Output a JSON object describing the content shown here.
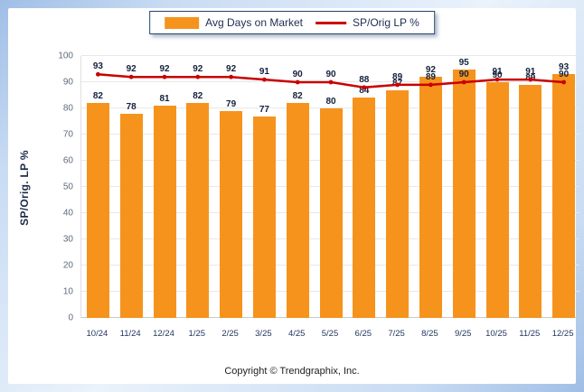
{
  "legend": {
    "bar_label": "Avg Days on Market",
    "line_label": "SP/Orig LP %"
  },
  "y_axis_title": "SP/Orig. LP %",
  "footer": "Copyright © Trendgraphix, Inc.",
  "colors": {
    "bar": "#F6931D",
    "line": "#C80000"
  },
  "chart_data": {
    "type": "bar",
    "subtype": "bar-and-line-combo",
    "categories": [
      "10/24",
      "11/24",
      "12/24",
      "1/25",
      "2/25",
      "3/25",
      "4/25",
      "5/25",
      "6/25",
      "7/25",
      "8/25",
      "9/25",
      "10/25",
      "11/25",
      "12/25"
    ],
    "series": [
      {
        "name": "Avg Days on Market",
        "type": "bar",
        "values": [
          82,
          78,
          81,
          82,
          79,
          77,
          82,
          80,
          84,
          87,
          92,
          95,
          90,
          89,
          93
        ]
      },
      {
        "name": "SP/Orig LP %",
        "type": "line",
        "values": [
          93,
          92,
          92,
          92,
          92,
          91,
          90,
          90,
          88,
          89,
          89,
          90,
          91,
          91,
          90
        ]
      }
    ],
    "ylim": [
      0,
      100
    ],
    "yticks": [
      0,
      10,
      20,
      30,
      40,
      50,
      60,
      70,
      80,
      90,
      100
    ],
    "grid": true,
    "data_labels": true,
    "legend_position": "top-center"
  }
}
